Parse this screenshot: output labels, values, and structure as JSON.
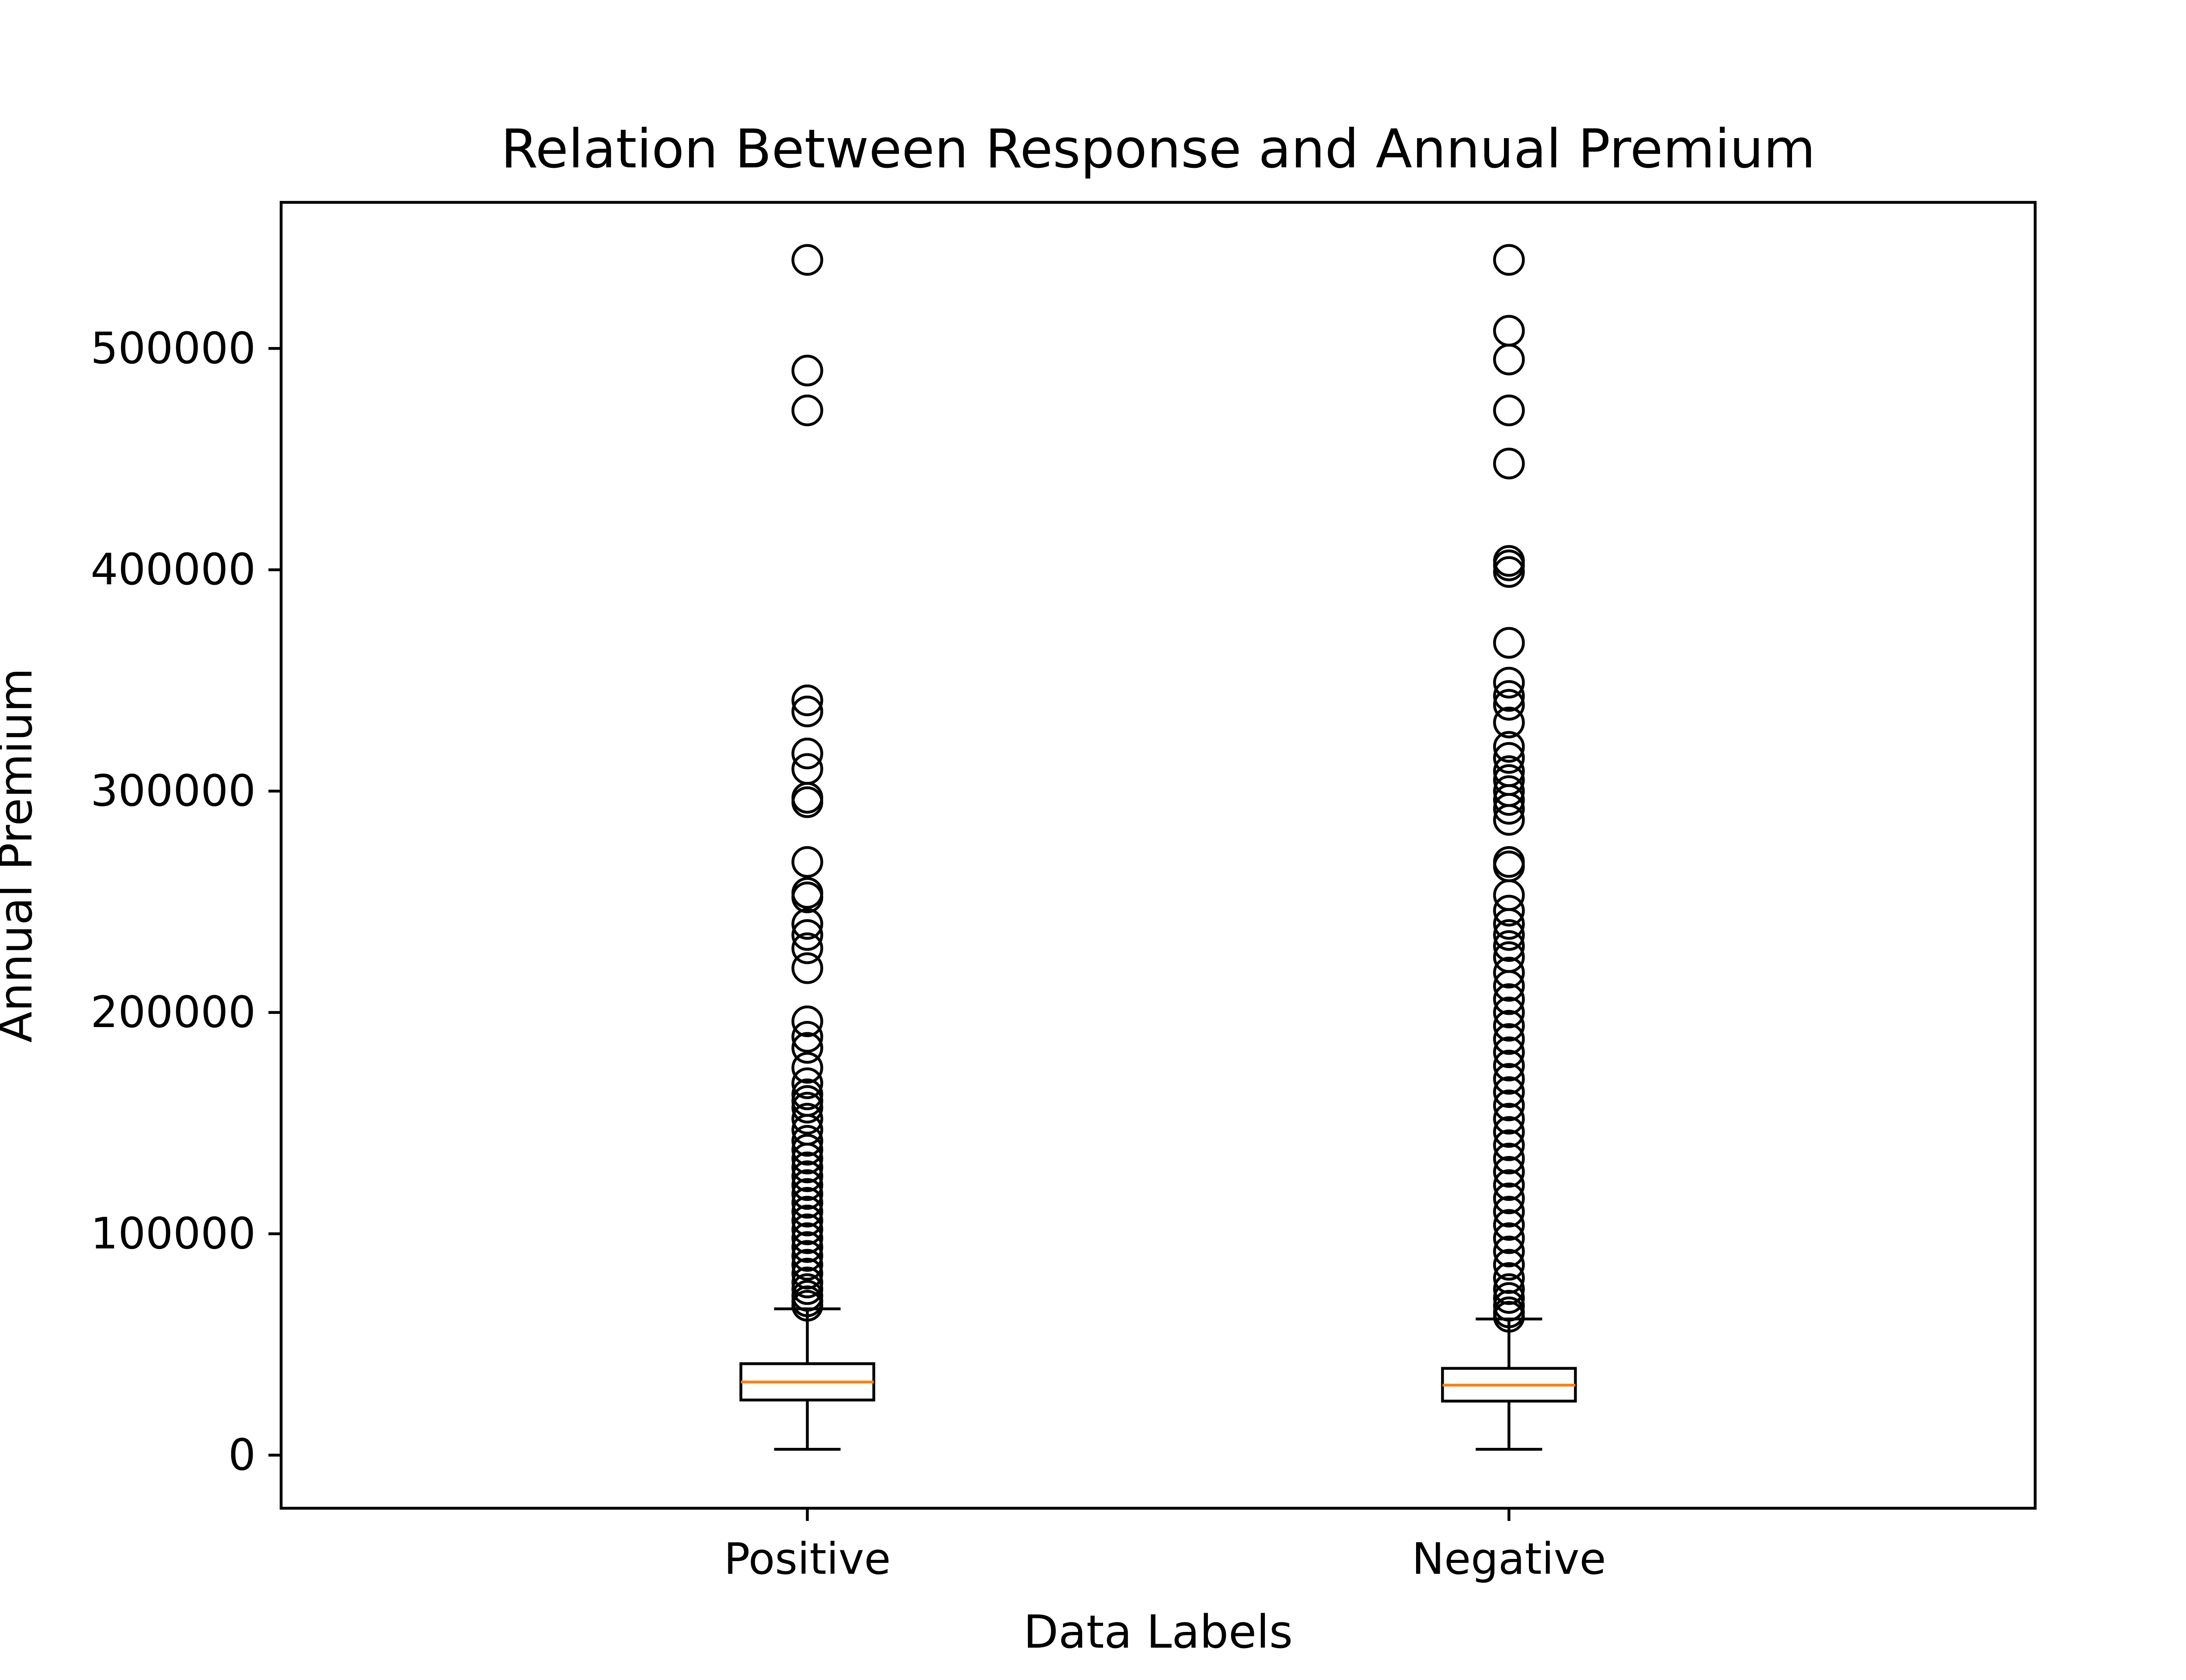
{
  "chart_data": {
    "type": "box",
    "title": "Relation Between Response and Annual Premium",
    "xlabel": "Data Labels",
    "ylabel": "Annual Premium",
    "ylim": [
      -24000,
      566000
    ],
    "y_ticks": [
      0,
      100000,
      200000,
      300000,
      400000,
      500000
    ],
    "y_tick_labels": [
      "0",
      "100000",
      "200000",
      "300000",
      "400000",
      "500000"
    ],
    "categories": [
      "Positive",
      "Negative"
    ],
    "grid": false,
    "colors": {
      "box": "#000000",
      "median": "#ff7f0e",
      "axes": "#000000"
    },
    "boxes": [
      {
        "label": "Positive",
        "whisker_low": 2630,
        "q1": 24900,
        "median": 33000,
        "q3": 41300,
        "whisker_high": 66100,
        "outliers": [
          540000,
          490000,
          472000,
          341000,
          336000,
          317000,
          310000,
          297000,
          295000,
          268000,
          254000,
          252000,
          240000,
          235000,
          229000,
          220000,
          196000,
          189000,
          184000,
          175000,
          168000,
          163000,
          160000,
          157000,
          152000,
          147000,
          142000,
          138000,
          134000,
          130000,
          126000,
          122000,
          118000,
          114000,
          110000,
          106000,
          102000,
          98000,
          94000,
          90000,
          86000,
          82000,
          78000,
          75000,
          72000,
          69500,
          67500
        ]
      },
      {
        "label": "Negative",
        "whisker_low": 2630,
        "q1": 24400,
        "median": 31600,
        "q3": 39200,
        "whisker_high": 61500,
        "outliers": [
          540000,
          508000,
          495000,
          472000,
          448000,
          404000,
          402000,
          399000,
          367000,
          349000,
          343000,
          339000,
          331000,
          320000,
          315000,
          309000,
          305000,
          300000,
          296000,
          292000,
          287000,
          268000,
          266000,
          253000,
          246000,
          240000,
          235000,
          230000,
          225000,
          218000,
          212000,
          206000,
          200000,
          194000,
          188000,
          182000,
          176000,
          170000,
          164000,
          158000,
          152000,
          146000,
          140000,
          134000,
          128000,
          122000,
          116000,
          110000,
          104000,
          98000,
          92000,
          86000,
          80000,
          75000,
          71000,
          67500,
          64500,
          62500
        ]
      }
    ]
  }
}
